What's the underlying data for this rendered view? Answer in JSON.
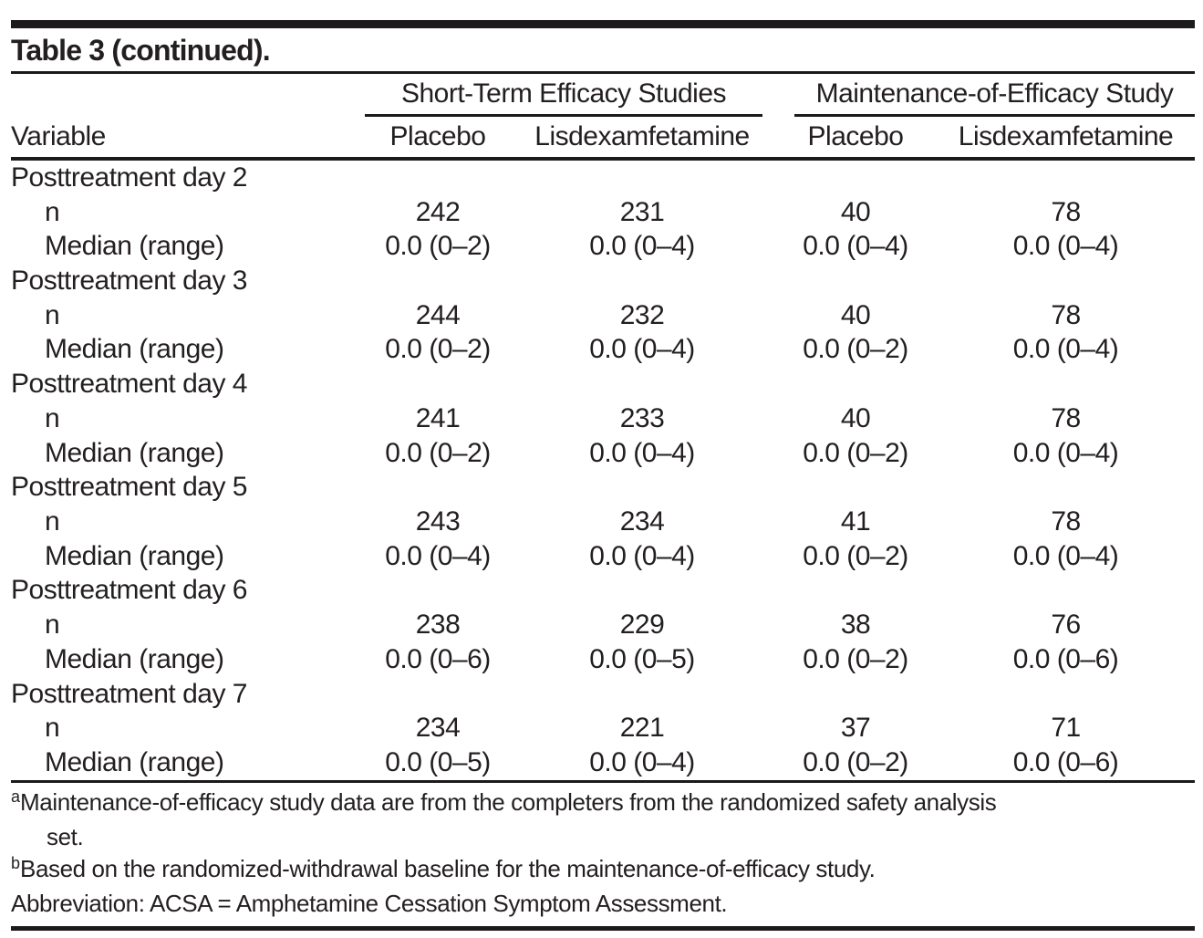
{
  "title": "Table 3 (continued).",
  "table": {
    "groups": [
      {
        "label": "Short-Term Efficacy Studies"
      },
      {
        "label": "Maintenance-of-Efficacy Study"
      }
    ],
    "columns": {
      "variable": "Variable",
      "st_placebo": "Placebo",
      "st_lisdexamfetamine": "Lisdexamfetamine",
      "moe_placebo": "Placebo",
      "moe_lisdexamfetamine": "Lisdexamfetamine"
    },
    "sections": [
      {
        "label": "Posttreatment day 2",
        "rows": [
          {
            "label": "n",
            "values": [
              "242",
              "231",
              "40",
              "78"
            ]
          },
          {
            "label": "Median (range)",
            "values": [
              "0.0 (0–2)",
              "0.0 (0–4)",
              "0.0 (0–4)",
              "0.0 (0–4)"
            ]
          }
        ]
      },
      {
        "label": "Posttreatment day 3",
        "rows": [
          {
            "label": "n",
            "values": [
              "244",
              "232",
              "40",
              "78"
            ]
          },
          {
            "label": "Median (range)",
            "values": [
              "0.0 (0–2)",
              "0.0 (0–4)",
              "0.0 (0–2)",
              "0.0 (0–4)"
            ]
          }
        ]
      },
      {
        "label": "Posttreatment day 4",
        "rows": [
          {
            "label": "n",
            "values": [
              "241",
              "233",
              "40",
              "78"
            ]
          },
          {
            "label": "Median (range)",
            "values": [
              "0.0 (0–2)",
              "0.0 (0–4)",
              "0.0 (0–2)",
              "0.0 (0–4)"
            ]
          }
        ]
      },
      {
        "label": "Posttreatment day 5",
        "rows": [
          {
            "label": "n",
            "values": [
              "243",
              "234",
              "41",
              "78"
            ]
          },
          {
            "label": "Median (range)",
            "values": [
              "0.0 (0–4)",
              "0.0 (0–4)",
              "0.0 (0–2)",
              "0.0 (0–4)"
            ]
          }
        ]
      },
      {
        "label": "Posttreatment day 6",
        "rows": [
          {
            "label": "n",
            "values": [
              "238",
              "229",
              "38",
              "76"
            ]
          },
          {
            "label": "Median (range)",
            "values": [
              "0.0 (0–6)",
              "0.0 (0–5)",
              "0.0 (0–2)",
              "0.0 (0–6)"
            ]
          }
        ]
      },
      {
        "label": "Posttreatment day 7",
        "rows": [
          {
            "label": "n",
            "values": [
              "234",
              "221",
              "37",
              "71"
            ]
          },
          {
            "label": "Median (range)",
            "values": [
              "0.0 (0–5)",
              "0.0 (0–4)",
              "0.0 (0–2)",
              "0.0 (0–6)"
            ]
          }
        ]
      }
    ]
  },
  "footnotes": {
    "a": {
      "marker": "a",
      "text": "Maintenance-of-efficacy study data are from the completers from the randomized safety analysis",
      "continuation": "set."
    },
    "b": {
      "marker": "b",
      "text": "Based on the randomized-withdrawal baseline for the maintenance-of-efficacy study."
    },
    "abbrev": {
      "text": "Abbreviation: ACSA = Amphetamine Cessation Symptom Assessment."
    }
  },
  "colors": {
    "text": "#231f20",
    "rule": "#1c1a1b",
    "background": "#ffffff"
  }
}
